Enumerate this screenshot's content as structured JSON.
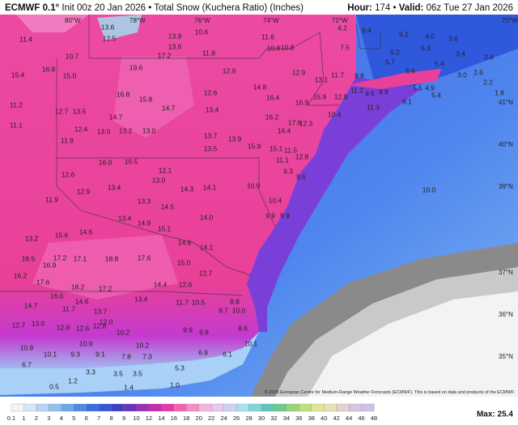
{
  "header": {
    "model": "ECMWF 0.1°",
    "init": "Init 00z 20 Jan 2026",
    "product": "Total Snow (Kuchera Ratio) (Inches)",
    "hour_label": "Hour:",
    "hour": "174",
    "valid_label": "Valid:",
    "valid": "06z Tue 27 Jan 2026"
  },
  "map": {
    "lon_labels": [
      "80°W",
      "78°W",
      "76°W",
      "74°W",
      "72°W",
      "70°W"
    ],
    "lat_labels": [
      "41°N",
      "40°N",
      "39°N",
      "37°N",
      "36°N",
      "35°N"
    ],
    "labels": [
      "11.4",
      "16.8",
      "15.4",
      "15.0",
      "13.6",
      "12.5",
      "13.9",
      "13.6",
      "17.2",
      "19.6",
      "12.9",
      "12.9",
      "13.1",
      "14.8",
      "16.8",
      "15.8",
      "14.7",
      "14.7",
      "13.5",
      "12.7",
      "11.2",
      "11.1",
      "12.4",
      "13.0",
      "13.2",
      "13.0",
      "12.6",
      "13.4",
      "16.4",
      "16.9",
      "16.2",
      "17.6",
      "12.3",
      "16.4",
      "13.7",
      "13.9",
      "13.5",
      "15.9",
      "15.1",
      "11.9",
      "16.0",
      "16.5",
      "12.1",
      "13.0",
      "12.6",
      "12.9",
      "13.4",
      "11.9",
      "13.3",
      "14.5",
      "14.3",
      "14.1",
      "13.4",
      "14.9",
      "15.1",
      "14.0",
      "15.6",
      "14.6",
      "13.2",
      "17.1",
      "18.8",
      "17.6",
      "14.6",
      "15.0",
      "14.1",
      "16.5",
      "16.9",
      "17.2",
      "17.6",
      "18.2",
      "17.2",
      "16.2",
      "14.4",
      "12.6",
      "12.7",
      "16.0",
      "14.7",
      "11.7",
      "14.6",
      "13.7",
      "13.4",
      "12.0",
      "12.7",
      "13.0",
      "12.9",
      "12.6",
      "12.8",
      "11.7",
      "10.5",
      "9.7",
      "10.2",
      "10.9",
      "9.9",
      "9.8",
      "10.2",
      "10.8",
      "10.1",
      "9.3",
      "9.1",
      "7.8",
      "7.3",
      "6.9",
      "6.1",
      "5.3",
      "3.3",
      "3.5",
      "3.5",
      "6.7",
      "1.2",
      "1.4",
      "1.0",
      "0.5",
      "10.9",
      "10.4",
      "9.9",
      "9.9",
      "11.1",
      "12.8",
      "9.3",
      "9.5",
      "11.5",
      "10.4",
      "11.3",
      "8.1",
      "9.5",
      "8.8",
      "9.8",
      "11.2",
      "12.9",
      "15.9",
      "11.7",
      "7.5",
      "4.2",
      "6.4",
      "5.1",
      "4.0",
      "3.6",
      "5.7",
      "5.2",
      "5.3",
      "3.4",
      "2.6",
      "5.4",
      "6.6",
      "5.5",
      "4.9",
      "5.4",
      "3.0",
      "2.6",
      "2.2",
      "1.8",
      "10.8",
      "10.6",
      "11.8",
      "11.6",
      "10.8",
      "10.7",
      "8.8",
      "8.6",
      "10.0",
      "10.0",
      "10.1"
    ],
    "copyright": "© 2026 European Centre for Medium-Range Weather Forecasts (ECMWF). This is based on data and products of the ECMWF."
  },
  "colorbar": {
    "ticks": [
      0.1,
      1,
      2,
      3,
      4,
      5,
      6,
      7,
      8,
      9,
      10,
      12,
      14,
      16,
      18,
      20,
      22,
      24,
      26,
      28,
      30,
      32,
      34,
      36,
      38,
      40,
      42,
      44,
      46,
      48
    ]
  },
  "max": "Max: 25.4"
}
